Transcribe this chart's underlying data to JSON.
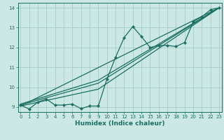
{
  "title": "",
  "xlabel": "Humidex (Indice chaleur)",
  "bg_color": "#cce8e4",
  "line_color": "#1a6e62",
  "grid_color": "#aacfcb",
  "x_ticks": [
    0,
    1,
    2,
    3,
    4,
    5,
    6,
    7,
    8,
    9,
    10,
    11,
    12,
    13,
    14,
    15,
    16,
    17,
    18,
    19,
    20,
    21,
    22,
    23
  ],
  "y_ticks": [
    9,
    10,
    11,
    12,
    13,
    14
  ],
  "xlim": [
    -0.3,
    23.3
  ],
  "ylim": [
    8.75,
    14.25
  ],
  "main_data_x": [
    0,
    1,
    2,
    3,
    4,
    5,
    6,
    7,
    8,
    9,
    10,
    11,
    12,
    13,
    14,
    15,
    16,
    17,
    18,
    19,
    20,
    21,
    22,
    23
  ],
  "main_data_y": [
    9.1,
    8.9,
    9.25,
    9.4,
    9.1,
    9.1,
    9.15,
    8.92,
    9.05,
    9.05,
    10.4,
    11.5,
    12.5,
    13.05,
    12.55,
    12.0,
    12.1,
    12.1,
    12.05,
    12.25,
    13.3,
    13.55,
    13.9,
    14.0
  ],
  "trend1_x": [
    0,
    23
  ],
  "trend1_y": [
    9.05,
    14.0
  ],
  "trend2_x": [
    0,
    9,
    23
  ],
  "trend2_y": [
    9.05,
    9.9,
    14.0
  ],
  "trend3_x": [
    0,
    9,
    23
  ],
  "trend3_y": [
    9.1,
    10.2,
    14.0
  ],
  "trend4_x": [
    0,
    9,
    23
  ],
  "trend4_y": [
    9.15,
    10.35,
    14.0
  ]
}
